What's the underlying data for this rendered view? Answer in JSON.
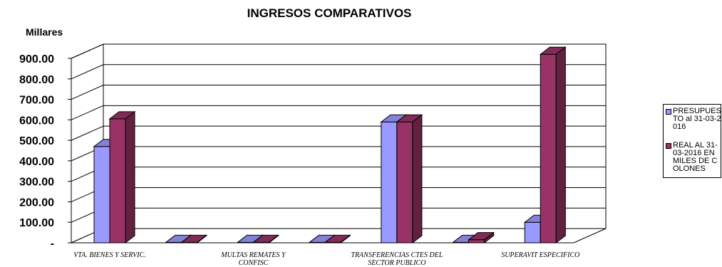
{
  "chart_data": {
    "type": "bar",
    "title": "INGRESOS COMPARATIVOS",
    "ylabel": "Millares",
    "ylim": [
      0,
      900
    ],
    "y_ticks": [
      "-",
      "100.00",
      "200.00",
      "300.00",
      "400.00",
      "500.00",
      "600.00",
      "700.00",
      "800.00",
      "900.00"
    ],
    "categories": [
      "VTA. BIENES Y SERVIC.",
      "",
      "MULTAS REMATES Y CONFISC",
      "",
      "TRANSFERENCIAS CTES DEL SECTOR PUBLICO",
      "",
      "SUPERAVIT ESPECIFICO"
    ],
    "series": [
      {
        "name": "PRESUPUESTO al 31-03-2016",
        "color": "#9999FF",
        "values": [
          470,
          2,
          2,
          2,
          590,
          2,
          100
        ]
      },
      {
        "name": "REAL AL 31-03-2016 EN MILES DE COLONES",
        "color": "#993366",
        "values": [
          605,
          2,
          2,
          2,
          590,
          15,
          920
        ]
      }
    ],
    "grid": true,
    "legend": "right",
    "projection": "3d"
  }
}
